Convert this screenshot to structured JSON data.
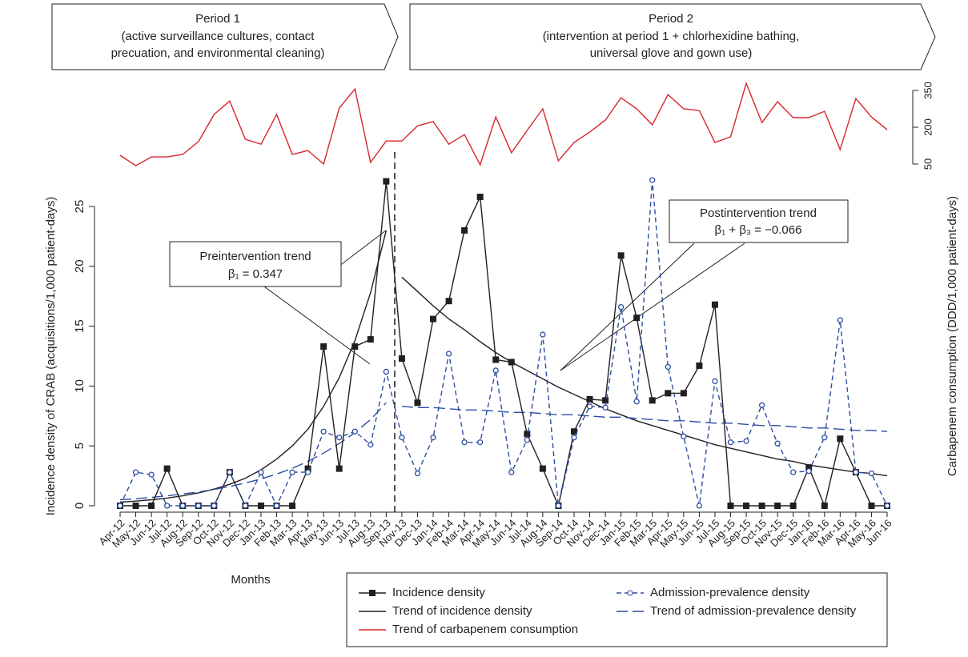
{
  "periods": [
    {
      "title": "Period 1",
      "lines": [
        "(active surveillance cultures, contact",
        "precuation, and environmental cleaning)"
      ]
    },
    {
      "title": "Period 2",
      "lines": [
        "(intervention at period 1 + chlorhexidine bathing,",
        "universal glove and gown use)"
      ]
    }
  ],
  "chart_data": {
    "type": "line",
    "categories": [
      "Apr-12",
      "May-12",
      "Jun-12",
      "Jul-12",
      "Aug-12",
      "Sep-12",
      "Oct-12",
      "Nov-12",
      "Dec-12",
      "Jan-13",
      "Feb-13",
      "Mar-13",
      "Apr-13",
      "May-13",
      "Jun-13",
      "Jul-13",
      "Aug-13",
      "Sep-13",
      "Nov-13",
      "Dec-13",
      "Jan-14",
      "Feb-14",
      "Mar-14",
      "Apr-14",
      "May-14",
      "Jun-14",
      "Jul-14",
      "Aug-14",
      "Sep-14",
      "Oct-14",
      "Nov-14",
      "Dec-14",
      "Jan-15",
      "Feb-15",
      "Mar-15",
      "Apr-15",
      "May-15",
      "Jun-15",
      "Jul-15",
      "Aug-15",
      "Sep-15",
      "Oct-15",
      "Nov-15",
      "Dec-15",
      "Jan-16",
      "Feb-16",
      "Mar-16",
      "Apr-16",
      "May-16",
      "Jun-16"
    ],
    "series": [
      {
        "name": "Incidence density",
        "color": "#231f20",
        "marker": "square",
        "values": [
          0,
          0,
          0,
          3.1,
          0,
          0,
          0,
          2.8,
          0,
          0,
          0,
          0,
          3.1,
          13.3,
          3.1,
          13.3,
          13.9,
          27.1,
          12.3,
          8.6,
          15.6,
          17.1,
          23.0,
          25.8,
          12.2,
          12.0,
          6.0,
          3.1,
          0,
          6.2,
          8.9,
          8.8,
          20.9,
          15.7,
          8.8,
          9.4,
          9.4,
          11.7,
          16.8,
          0,
          0,
          0,
          0,
          0,
          3.2,
          0,
          5.6,
          2.8,
          0,
          0
        ]
      },
      {
        "name": "Admission-prevalence density",
        "color": "#2b4ea2",
        "marker": "circle",
        "dash": true,
        "values": [
          0,
          2.8,
          2.6,
          0,
          0,
          0,
          0,
          2.8,
          0,
          2.8,
          0,
          2.8,
          2.8,
          6.2,
          5.7,
          6.2,
          5.1,
          11.2,
          5.7,
          2.7,
          5.7,
          12.7,
          5.3,
          5.3,
          11.3,
          2.8,
          5.5,
          14.3,
          0,
          5.7,
          8.3,
          8.2,
          16.6,
          8.7,
          27.2,
          11.6,
          5.8,
          0,
          10.4,
          5.3,
          5.4,
          8.4,
          5.2,
          2.8,
          2.9,
          5.7,
          15.5,
          2.8,
          2.7,
          0
        ]
      },
      {
        "name": "Trend of carbapenem consumption",
        "color": "#d7262b",
        "axis": "y2",
        "values": [
          86,
          43,
          79,
          79,
          89,
          141,
          252,
          307,
          151,
          131,
          252,
          89,
          105,
          50,
          278,
          356,
          57,
          144,
          144,
          206,
          223,
          131,
          170,
          47,
          242,
          96,
          187,
          275,
          63,
          138,
          180,
          229,
          320,
          275,
          210,
          333,
          275,
          268,
          138,
          161,
          379,
          219,
          304,
          239,
          239,
          265,
          109,
          317,
          242,
          190
        ]
      }
    ],
    "trends": [
      {
        "name": "Trend of incidence density",
        "color": "#231f20",
        "pre": [
          0.3,
          0.39,
          0.5,
          0.64,
          0.83,
          1.07,
          1.39,
          1.79,
          2.3,
          3.0,
          3.9,
          5.0,
          6.4,
          8.3,
          10.7,
          13.8,
          17.8,
          23.0
        ],
        "post": [
          19.1,
          17.9,
          16.7,
          15.6,
          14.7,
          13.7,
          12.8,
          12.0,
          11.3,
          10.6,
          9.9,
          9.3,
          8.7,
          8.1,
          7.6,
          7.1,
          6.7,
          6.3,
          5.9,
          5.5,
          5.1,
          4.8,
          4.5,
          4.2,
          3.9,
          3.7,
          3.4,
          3.2,
          3.0,
          2.8,
          2.7,
          2.5
        ]
      },
      {
        "name": "Trend of admission-prevalence density",
        "color": "#2b4ea2",
        "dash": true,
        "pre": [
          0.5,
          0.59,
          0.7,
          0.83,
          0.98,
          1.15,
          1.36,
          1.61,
          1.9,
          2.24,
          2.65,
          3.13,
          3.7,
          4.4,
          5.2,
          6.1,
          7.2,
          8.6
        ],
        "post": [
          8.3,
          8.2,
          8.2,
          8.1,
          8.0,
          8.0,
          7.9,
          7.8,
          7.8,
          7.7,
          7.6,
          7.6,
          7.5,
          7.4,
          7.4,
          7.3,
          7.2,
          7.1,
          7.1,
          7.0,
          6.9,
          6.9,
          6.8,
          6.7,
          6.7,
          6.6,
          6.5,
          6.5,
          6.4,
          6.3,
          6.3,
          6.2
        ]
      }
    ],
    "ylim": [
      0,
      25
    ],
    "yticks": [
      0,
      5,
      10,
      15,
      20,
      25
    ],
    "y2lim": [
      50,
      350
    ],
    "y2ticks": [
      50,
      200,
      350
    ],
    "ylabel": "Incidence density of CRAB (acquisitions/1,000 patient-days)",
    "y2label": "Carbapenem consumption (DDD/1,000 patient-days)",
    "xlabel": "Months",
    "annotations": [
      {
        "title": "Preintervention trend",
        "text": "β₁ = 0.347"
      },
      {
        "title": "Postintervention trend",
        "text": "β₁ + β₃ = −0.066"
      }
    ]
  }
}
